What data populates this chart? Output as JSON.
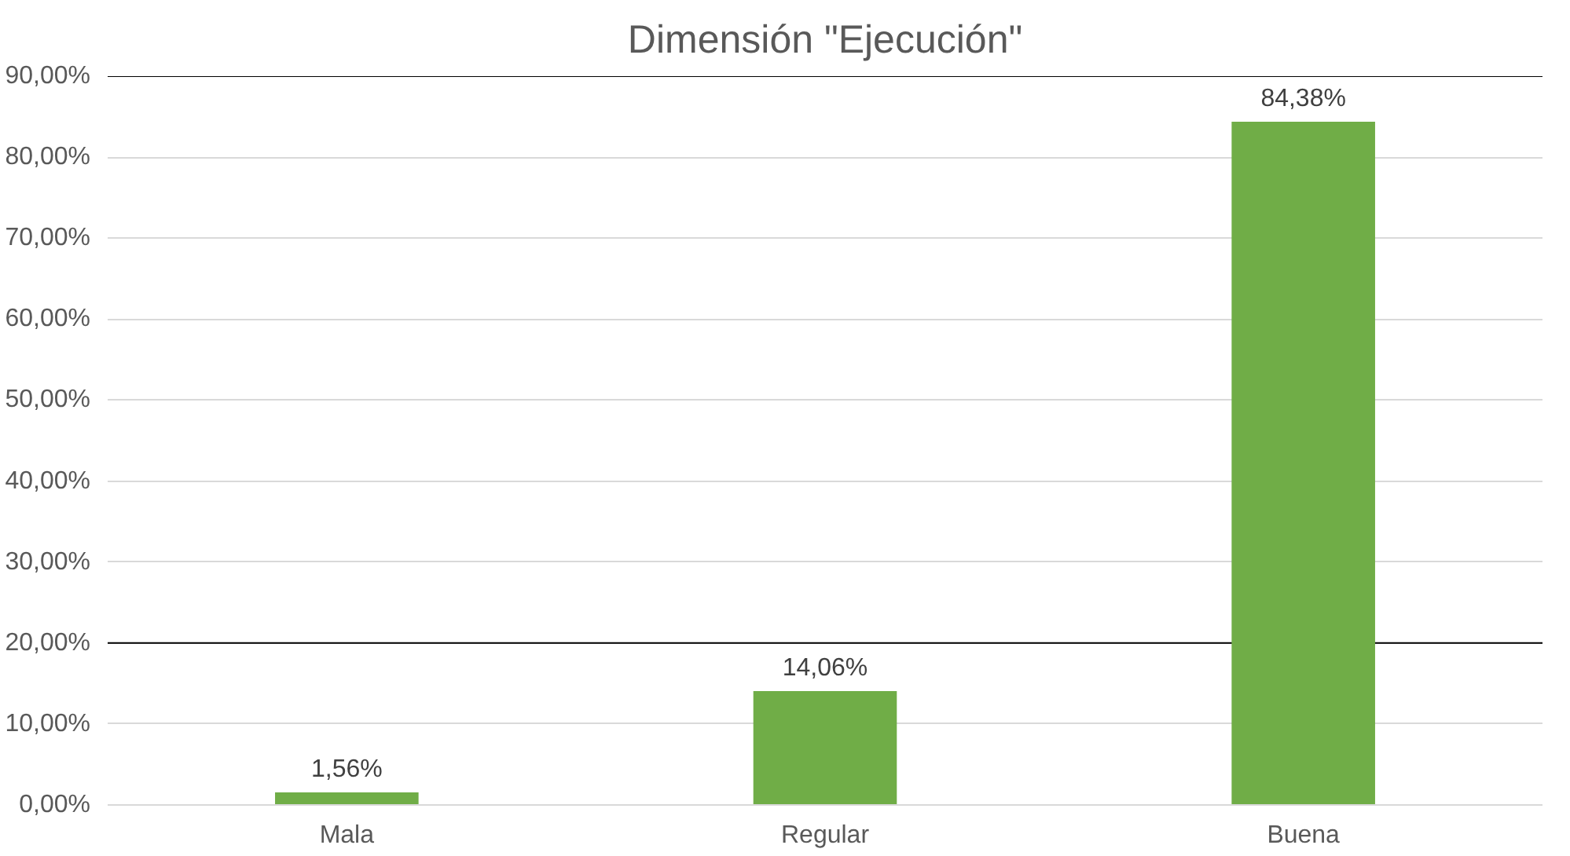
{
  "chart_data": {
    "type": "bar",
    "title": "Dimensión \"Ejecución\"",
    "categories": [
      "Mala",
      "Regular",
      "Buena"
    ],
    "values": [
      1.56,
      14.06,
      84.38
    ],
    "color": "#70ad47",
    "value_labels": [
      "1,56%",
      "14,06%",
      "84,38%"
    ],
    "ylim": [
      0,
      90
    ],
    "yticks": [
      {
        "value": 0,
        "label": "0,00%"
      },
      {
        "value": 10,
        "label": "10,00%"
      },
      {
        "value": 20,
        "label": "20,00%"
      },
      {
        "value": 30,
        "label": "30,00%"
      },
      {
        "value": 40,
        "label": "40,00%"
      },
      {
        "value": 50,
        "label": "50,00%"
      },
      {
        "value": 60,
        "label": "60,00%"
      },
      {
        "value": 70,
        "label": "70,00%"
      },
      {
        "value": 80,
        "label": "80,00%"
      },
      {
        "value": 90,
        "label": "90,00%"
      }
    ],
    "ref_lines": [
      {
        "axis": "y",
        "value": 90,
        "color": "#000000"
      },
      {
        "axis": "y",
        "value": 20,
        "color": "#000000"
      }
    ],
    "grid": "y"
  }
}
